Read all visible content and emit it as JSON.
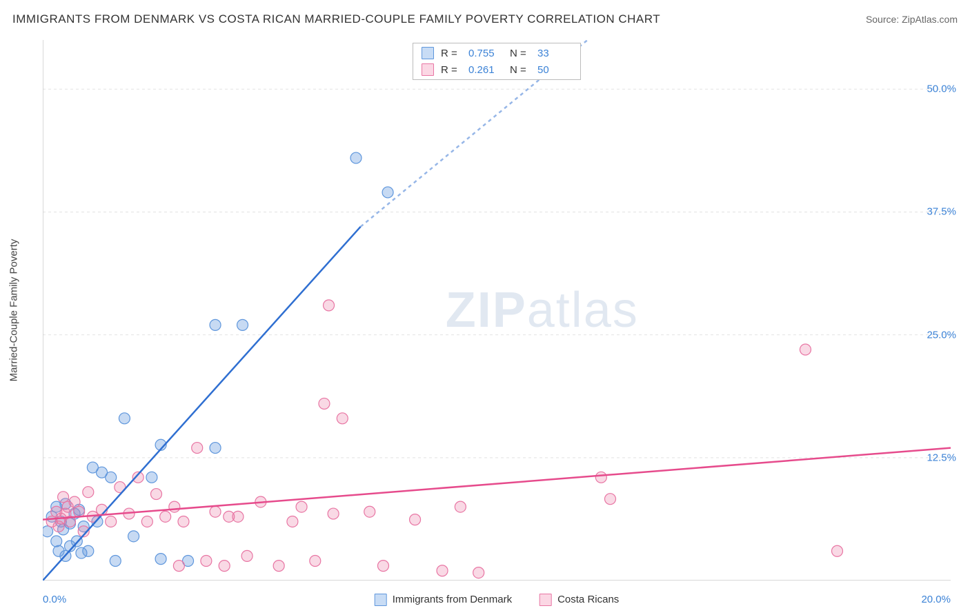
{
  "title": "IMMIGRANTS FROM DENMARK VS COSTA RICAN MARRIED-COUPLE FAMILY POVERTY CORRELATION CHART",
  "source": "Source: ZipAtlas.com",
  "watermark": "ZIPatlas",
  "chart": {
    "type": "scatter",
    "background_color": "#ffffff",
    "grid_color": "#e2e2e2",
    "axis_color": "#cccccc",
    "ylabel": "Married-Couple Family Poverty",
    "ylabel_fontsize": 15,
    "xlim": [
      0,
      20
    ],
    "ylim": [
      0,
      55
    ],
    "origin_label": "0.0%",
    "xmax_label": "20.0%",
    "yticks": [
      {
        "v": 12.5,
        "label": "12.5%"
      },
      {
        "v": 25.0,
        "label": "25.0%"
      },
      {
        "v": 37.5,
        "label": "37.5%"
      },
      {
        "v": 50.0,
        "label": "50.0%"
      }
    ],
    "series": [
      {
        "name": "Immigrants from Denmark",
        "color_fill": "rgba(94,150,220,0.35)",
        "color_stroke": "#5e96dc",
        "swatch_fill": "#c8dcf5",
        "swatch_border": "#5e96dc",
        "marker_radius": 8,
        "R": "0.755",
        "N": "33",
        "trend": {
          "x1": 0,
          "y1": 0,
          "x2": 7.0,
          "y2": 36.0,
          "x3": 12.0,
          "y3": 55.0,
          "color": "#2f6fd1",
          "width": 2.5
        },
        "points": [
          [
            0.1,
            5.0
          ],
          [
            0.2,
            6.5
          ],
          [
            0.3,
            7.5
          ],
          [
            0.3,
            4.0
          ],
          [
            0.35,
            3.0
          ],
          [
            0.4,
            6.0
          ],
          [
            0.45,
            5.2
          ],
          [
            0.5,
            7.8
          ],
          [
            0.5,
            2.5
          ],
          [
            0.6,
            5.8
          ],
          [
            0.6,
            3.5
          ],
          [
            0.7,
            6.8
          ],
          [
            0.75,
            4.0
          ],
          [
            0.8,
            7.2
          ],
          [
            0.85,
            2.8
          ],
          [
            0.9,
            5.5
          ],
          [
            1.0,
            3.0
          ],
          [
            1.1,
            11.5
          ],
          [
            1.3,
            11.0
          ],
          [
            1.5,
            10.5
          ],
          [
            1.6,
            2.0
          ],
          [
            1.8,
            16.5
          ],
          [
            2.0,
            4.5
          ],
          [
            2.4,
            10.5
          ],
          [
            2.6,
            2.2
          ],
          [
            2.6,
            13.8
          ],
          [
            3.2,
            2.0
          ],
          [
            3.8,
            13.5
          ],
          [
            3.8,
            26.0
          ],
          [
            4.4,
            26.0
          ],
          [
            6.9,
            43.0
          ],
          [
            7.6,
            39.5
          ],
          [
            1.2,
            6.0
          ]
        ]
      },
      {
        "name": "Costa Ricans",
        "color_fill": "rgba(235,130,170,0.30)",
        "color_stroke": "#e875a3",
        "swatch_fill": "#fbd7e4",
        "swatch_border": "#e875a3",
        "marker_radius": 8,
        "R": "0.261",
        "N": "50",
        "trend": {
          "x1": 0,
          "y1": 6.2,
          "x2": 20,
          "y2": 13.5,
          "color": "#e64b8c",
          "width": 2.5
        },
        "points": [
          [
            0.2,
            6.0
          ],
          [
            0.3,
            7.0
          ],
          [
            0.35,
            5.5
          ],
          [
            0.4,
            6.3
          ],
          [
            0.45,
            8.5
          ],
          [
            0.5,
            6.8
          ],
          [
            0.55,
            7.5
          ],
          [
            0.6,
            6.0
          ],
          [
            0.7,
            8.0
          ],
          [
            0.8,
            7.0
          ],
          [
            0.9,
            5.0
          ],
          [
            1.0,
            9.0
          ],
          [
            1.1,
            6.5
          ],
          [
            1.3,
            7.2
          ],
          [
            1.5,
            6.0
          ],
          [
            1.7,
            9.5
          ],
          [
            1.9,
            6.8
          ],
          [
            2.1,
            10.5
          ],
          [
            2.3,
            6.0
          ],
          [
            2.5,
            8.8
          ],
          [
            2.7,
            6.5
          ],
          [
            2.9,
            7.5
          ],
          [
            3.0,
            1.5
          ],
          [
            3.1,
            6.0
          ],
          [
            3.4,
            13.5
          ],
          [
            3.6,
            2.0
          ],
          [
            3.8,
            7.0
          ],
          [
            4.0,
            1.5
          ],
          [
            4.3,
            6.5
          ],
          [
            4.5,
            2.5
          ],
          [
            4.8,
            8.0
          ],
          [
            5.2,
            1.5
          ],
          [
            5.5,
            6.0
          ],
          [
            5.7,
            7.5
          ],
          [
            6.0,
            2.0
          ],
          [
            6.2,
            18.0
          ],
          [
            6.3,
            28.0
          ],
          [
            6.4,
            6.8
          ],
          [
            6.6,
            16.5
          ],
          [
            7.2,
            7.0
          ],
          [
            7.5,
            1.5
          ],
          [
            8.2,
            6.2
          ],
          [
            8.8,
            1.0
          ],
          [
            9.2,
            7.5
          ],
          [
            9.6,
            0.8
          ],
          [
            12.3,
            10.5
          ],
          [
            12.5,
            8.3
          ],
          [
            16.8,
            23.5
          ],
          [
            17.5,
            3.0
          ],
          [
            4.1,
            6.5
          ]
        ]
      }
    ],
    "stat_box": {
      "labels": {
        "r": "R =",
        "n": "N ="
      }
    }
  }
}
